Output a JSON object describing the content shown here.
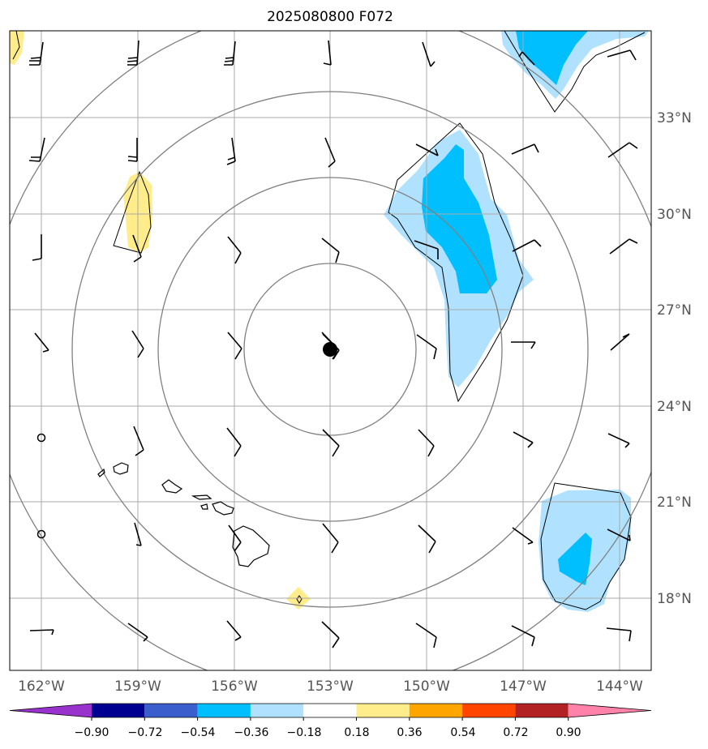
{
  "title": "2025080800 F072",
  "lon_labels": [
    "162°W",
    "159°W",
    "156°W",
    "153°W",
    "150°W",
    "147°W",
    "144°W"
  ],
  "lat_labels": [
    "33°N",
    "30°N",
    "27°N",
    "24°N",
    "21°N",
    "18°N"
  ],
  "colorbar": {
    "tick_labels": [
      "−0.90",
      "−0.72",
      "−0.54",
      "−0.36",
      "−0.18",
      "0.18",
      "0.36",
      "0.54",
      "0.72",
      "0.90"
    ],
    "colors": [
      "#9932CC",
      "#000090",
      "#3A5FCD",
      "#00BFFF",
      "#B0E2FF",
      "#FFFFFF",
      "#FFEC8B",
      "#FFA500",
      "#FF4500",
      "#B22222",
      "#FF82AB"
    ]
  },
  "center_marker": {
    "lon": "153°W",
    "lat": "25.8°N"
  },
  "map_features": [
    "hawaiian-islands",
    "range-rings",
    "wind-barbs",
    "shaded-contours"
  ]
}
